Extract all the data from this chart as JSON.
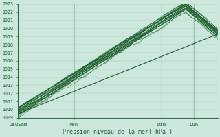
{
  "xlabel": "Pression niveau de la mer( hPa )",
  "ylim": [
    1009,
    1023
  ],
  "yticks": [
    1009,
    1010,
    1011,
    1012,
    1013,
    1014,
    1015,
    1016,
    1017,
    1018,
    1019,
    1020,
    1021,
    1022,
    1023
  ],
  "xtick_labels": [
    "JeuSam",
    "Ven",
    "Dim",
    "Lun"
  ],
  "xtick_positions": [
    0.0,
    0.28,
    0.72,
    0.88
  ],
  "bg_color": "#cce8dc",
  "grid_color": "#9dc9b3",
  "line_color": "#1a5c2a",
  "n_points": 120
}
